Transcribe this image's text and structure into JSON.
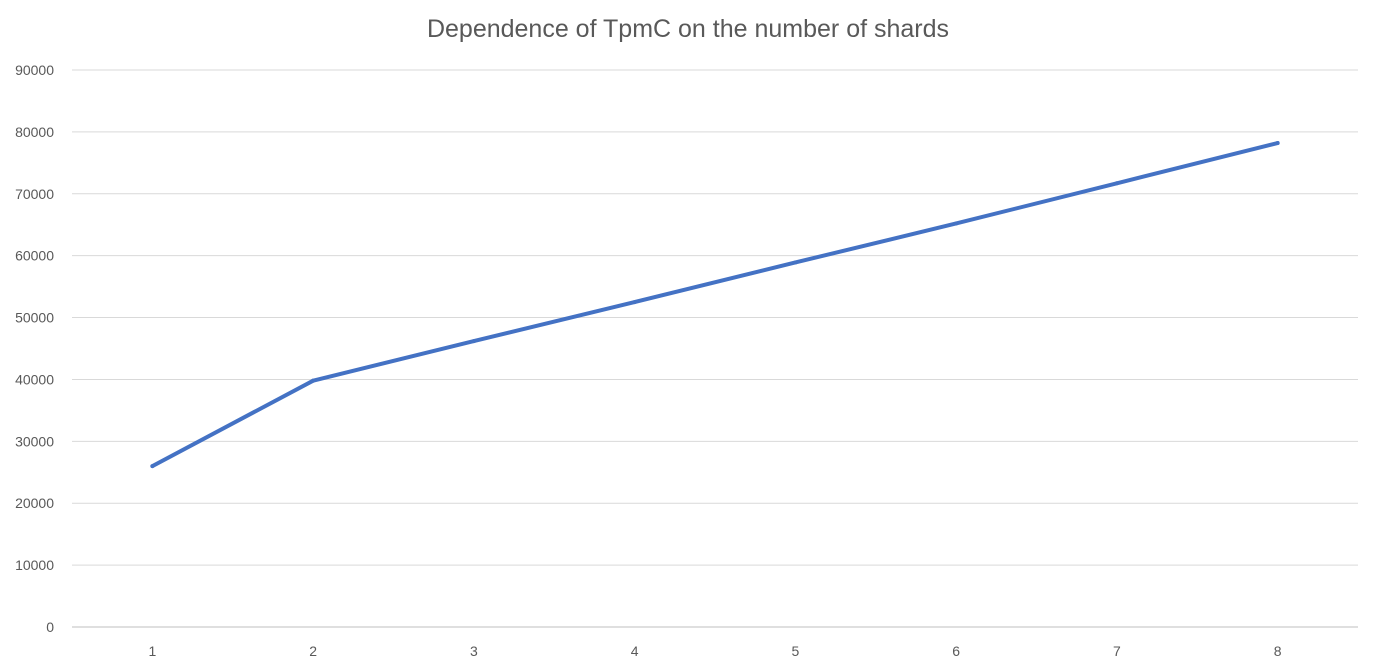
{
  "chart_data": {
    "type": "line",
    "title": "Dependence of TpmC on the number of shards",
    "xlabel": "",
    "ylabel": "",
    "categories": [
      "1",
      "2",
      "3",
      "4",
      "5",
      "6",
      "7",
      "8"
    ],
    "series": [
      {
        "values": [
          26000,
          39800,
          46200,
          52500,
          58900,
          65200,
          71700,
          78200
        ],
        "color": "#4472c4"
      }
    ],
    "ylim": [
      0,
      90000
    ],
    "yticks": [
      0,
      10000,
      20000,
      30000,
      40000,
      50000,
      60000,
      70000,
      80000,
      90000
    ],
    "ytick_labels": [
      "0",
      "10000",
      "20000",
      "30000",
      "40000",
      "50000",
      "60000",
      "70000",
      "80000",
      "90000"
    ],
    "grid": true,
    "legend": "none"
  }
}
